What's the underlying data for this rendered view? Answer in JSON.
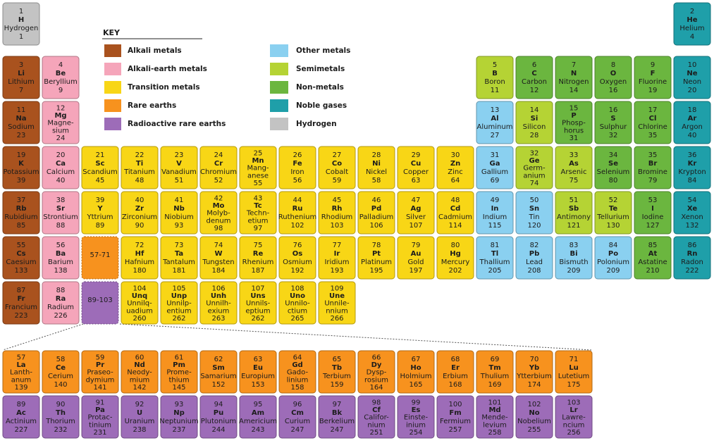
{
  "key": {
    "title": "KEY",
    "items": [
      {
        "label": "Alkali metals",
        "color": "#a9521e"
      },
      {
        "label": "Alkali-earth metals",
        "color": "#f5a5ba"
      },
      {
        "label": "Transition metals",
        "color": "#f8d616"
      },
      {
        "label": "Rare earths",
        "color": "#f7921e"
      },
      {
        "label": "Radioactive rare earths",
        "color": "#9d6cb8"
      },
      {
        "label": "Other metals",
        "color": "#8ad0f0"
      },
      {
        "label": "Semimetals",
        "color": "#b5d334"
      },
      {
        "label": "Non-metals",
        "color": "#6bb63f"
      },
      {
        "label": "Noble gases",
        "color": "#1f9fa9"
      },
      {
        "label": "Hydrogen",
        "color": "#c3c3c3"
      }
    ]
  },
  "periods": [
    [
      {
        "number": 1,
        "symbol": "H",
        "name": [
          "Hydrogen"
        ],
        "mass": 1,
        "color": "#c3c3c3"
      },
      {
        "number": 2,
        "symbol": "He",
        "name": [
          "Helium"
        ],
        "mass": 4,
        "color": "#1f9fa9"
      }
    ],
    [
      {
        "number": 3,
        "symbol": "Li",
        "name": [
          "Lithium"
        ],
        "mass": 7,
        "color": "#a9521e"
      },
      {
        "number": 4,
        "symbol": "Be",
        "name": [
          "Beryllium"
        ],
        "mass": 9,
        "color": "#f5a5ba"
      },
      {
        "number": 5,
        "symbol": "B",
        "name": [
          "Boron"
        ],
        "mass": 11,
        "color": "#b5d334"
      },
      {
        "number": 6,
        "symbol": "C",
        "name": [
          "Carbon"
        ],
        "mass": 12,
        "color": "#6bb63f"
      },
      {
        "number": 7,
        "symbol": "N",
        "name": [
          "Nitrogen"
        ],
        "mass": 14,
        "color": "#6bb63f"
      },
      {
        "number": 8,
        "symbol": "O",
        "name": [
          "Oxygen"
        ],
        "mass": 16,
        "color": "#6bb63f"
      },
      {
        "number": 9,
        "symbol": "F",
        "name": [
          "Fluorine"
        ],
        "mass": 19,
        "color": "#6bb63f"
      },
      {
        "number": 10,
        "symbol": "Ne",
        "name": [
          "Neon"
        ],
        "mass": 20,
        "color": "#1f9fa9"
      }
    ],
    [
      {
        "number": 11,
        "symbol": "Na",
        "name": [
          "Sodium"
        ],
        "mass": 23,
        "color": "#a9521e"
      },
      {
        "number": 12,
        "symbol": "Mg",
        "name": [
          "Magne-",
          "sium"
        ],
        "mass": 24,
        "color": "#f5a5ba"
      },
      {
        "number": 13,
        "symbol": "Al",
        "name": [
          "Aluminum"
        ],
        "mass": 27,
        "color": "#8ad0f0"
      },
      {
        "number": 14,
        "symbol": "Si",
        "name": [
          "Silicon"
        ],
        "mass": 28,
        "color": "#b5d334"
      },
      {
        "number": 15,
        "symbol": "P",
        "name": [
          "Phosp-",
          "horus"
        ],
        "mass": 31,
        "color": "#6bb63f"
      },
      {
        "number": 16,
        "symbol": "S",
        "name": [
          "Sulphur"
        ],
        "mass": 32,
        "color": "#6bb63f"
      },
      {
        "number": 17,
        "symbol": "Cl",
        "name": [
          "Chlorine"
        ],
        "mass": 35,
        "color": "#6bb63f"
      },
      {
        "number": 18,
        "symbol": "Ar",
        "name": [
          "Argon"
        ],
        "mass": 40,
        "color": "#1f9fa9"
      }
    ],
    [
      {
        "number": 19,
        "symbol": "K",
        "name": [
          "Potassium"
        ],
        "mass": 39,
        "color": "#a9521e"
      },
      {
        "number": 20,
        "symbol": "Ca",
        "name": [
          "Calcium"
        ],
        "mass": 40,
        "color": "#f5a5ba"
      },
      {
        "number": 21,
        "symbol": "Sc",
        "name": [
          "Scandium"
        ],
        "mass": 45,
        "color": "#f8d616"
      },
      {
        "number": 22,
        "symbol": "Ti",
        "name": [
          "Titanium"
        ],
        "mass": 48,
        "color": "#f8d616"
      },
      {
        "number": 23,
        "symbol": "V",
        "name": [
          "Vanadium"
        ],
        "mass": 51,
        "color": "#f8d616"
      },
      {
        "number": 24,
        "symbol": "Cr",
        "name": [
          "Chromium"
        ],
        "mass": 52,
        "color": "#f8d616"
      },
      {
        "number": 25,
        "symbol": "Mn",
        "name": [
          "Mang-",
          "anese"
        ],
        "mass": 55,
        "color": "#f8d616"
      },
      {
        "number": 26,
        "symbol": "Fe",
        "name": [
          "Iron"
        ],
        "mass": 56,
        "color": "#f8d616"
      },
      {
        "number": 27,
        "symbol": "Co",
        "name": [
          "Cobalt"
        ],
        "mass": 59,
        "color": "#f8d616"
      },
      {
        "number": 28,
        "symbol": "Ni",
        "name": [
          "Nickel"
        ],
        "mass": 58,
        "color": "#f8d616"
      },
      {
        "number": 29,
        "symbol": "Cu",
        "name": [
          "Copper"
        ],
        "mass": 63,
        "color": "#f8d616"
      },
      {
        "number": 30,
        "symbol": "Zn",
        "name": [
          "Zinc"
        ],
        "mass": 64,
        "color": "#f8d616"
      },
      {
        "number": 31,
        "symbol": "Ga",
        "name": [
          "Gallium"
        ],
        "mass": 69,
        "color": "#8ad0f0"
      },
      {
        "number": 32,
        "symbol": "Ge",
        "name": [
          "Germ-",
          "anium"
        ],
        "mass": 74,
        "color": "#b5d334"
      },
      {
        "number": 33,
        "symbol": "As",
        "name": [
          "Arsenic"
        ],
        "mass": 75,
        "color": "#b5d334"
      },
      {
        "number": 34,
        "symbol": "Se",
        "name": [
          "Selenium"
        ],
        "mass": 80,
        "color": "#6bb63f"
      },
      {
        "number": 35,
        "symbol": "Br",
        "name": [
          "Bromine"
        ],
        "mass": 79,
        "color": "#6bb63f"
      },
      {
        "number": 36,
        "symbol": "Kr",
        "name": [
          "Krypton"
        ],
        "mass": 84,
        "color": "#1f9fa9"
      }
    ],
    [
      {
        "number": 37,
        "symbol": "Rb",
        "name": [
          "Rubidium"
        ],
        "mass": 85,
        "color": "#a9521e"
      },
      {
        "number": 38,
        "symbol": "Sr",
        "name": [
          "Strontium"
        ],
        "mass": 88,
        "color": "#f5a5ba"
      },
      {
        "number": 39,
        "symbol": "Y",
        "name": [
          "Yttrium"
        ],
        "mass": 89,
        "color": "#f8d616"
      },
      {
        "number": 40,
        "symbol": "Zr",
        "name": [
          "Zirconium"
        ],
        "mass": 90,
        "color": "#f8d616"
      },
      {
        "number": 41,
        "symbol": "Nb",
        "name": [
          "Niobium"
        ],
        "mass": 93,
        "color": "#f8d616"
      },
      {
        "number": 42,
        "symbol": "Mo",
        "name": [
          "Molyb-",
          "denum"
        ],
        "mass": 98,
        "color": "#f8d616"
      },
      {
        "number": 43,
        "symbol": "Tc",
        "name": [
          "Techn-",
          "etium"
        ],
        "mass": 97,
        "color": "#f8d616"
      },
      {
        "number": 44,
        "symbol": "Ru",
        "name": [
          "Ruthenium"
        ],
        "mass": 102,
        "color": "#f8d616"
      },
      {
        "number": 45,
        "symbol": "Rh",
        "name": [
          "Rhodium"
        ],
        "mass": 103,
        "color": "#f8d616"
      },
      {
        "number": 46,
        "symbol": "Pd",
        "name": [
          "Palladium"
        ],
        "mass": 106,
        "color": "#f8d616"
      },
      {
        "number": 47,
        "symbol": "Ag",
        "name": [
          "Silver"
        ],
        "mass": 107,
        "color": "#f8d616"
      },
      {
        "number": 48,
        "symbol": "Cd",
        "name": [
          "Cadmium"
        ],
        "mass": 114,
        "color": "#f8d616"
      },
      {
        "number": 49,
        "symbol": "In",
        "name": [
          "Indium"
        ],
        "mass": 115,
        "color": "#8ad0f0"
      },
      {
        "number": 50,
        "symbol": "Sn",
        "name": [
          "Tin"
        ],
        "mass": 120,
        "color": "#8ad0f0"
      },
      {
        "number": 51,
        "symbol": "Sb",
        "name": [
          "Antimony"
        ],
        "mass": 121,
        "color": "#b5d334"
      },
      {
        "number": 52,
        "symbol": "Te",
        "name": [
          "Tellurium"
        ],
        "mass": 130,
        "color": "#b5d334"
      },
      {
        "number": 53,
        "symbol": "I",
        "name": [
          "Iodine"
        ],
        "mass": 127,
        "color": "#6bb63f"
      },
      {
        "number": 54,
        "symbol": "Xe",
        "name": [
          "Xenon"
        ],
        "mass": 132,
        "color": "#1f9fa9"
      }
    ],
    [
      {
        "number": 55,
        "symbol": "Cs",
        "name": [
          "Caesium"
        ],
        "mass": 133,
        "color": "#a9521e"
      },
      {
        "number": 56,
        "symbol": "Ba",
        "name": [
          "Barium"
        ],
        "mass": 138,
        "color": "#f5a5ba"
      },
      {
        "label": "57-71",
        "color": "#f7921e"
      },
      {
        "number": 72,
        "symbol": "Hf",
        "name": [
          "Hafnium"
        ],
        "mass": 180,
        "color": "#f8d616"
      },
      {
        "number": 73,
        "symbol": "Ta",
        "name": [
          "Tantalum"
        ],
        "mass": 181,
        "color": "#f8d616"
      },
      {
        "number": 74,
        "symbol": "W",
        "name": [
          "Tungsten"
        ],
        "mass": 184,
        "color": "#f8d616"
      },
      {
        "number": 75,
        "symbol": "Re",
        "name": [
          "Rhenium"
        ],
        "mass": 187,
        "color": "#f8d616"
      },
      {
        "number": 76,
        "symbol": "Os",
        "name": [
          "Osmium"
        ],
        "mass": 192,
        "color": "#f8d616"
      },
      {
        "number": 77,
        "symbol": "Ir",
        "name": [
          "Iridium"
        ],
        "mass": 193,
        "color": "#f8d616"
      },
      {
        "number": 78,
        "symbol": "Pt",
        "name": [
          "Platinum"
        ],
        "mass": 195,
        "color": "#f8d616"
      },
      {
        "number": 79,
        "symbol": "Au",
        "name": [
          "Gold"
        ],
        "mass": 197,
        "color": "#f8d616"
      },
      {
        "number": 80,
        "symbol": "Hg",
        "name": [
          "Mercury"
        ],
        "mass": 202,
        "color": "#f8d616"
      },
      {
        "number": 81,
        "symbol": "Tl",
        "name": [
          "Thallium"
        ],
        "mass": 205,
        "color": "#8ad0f0"
      },
      {
        "number": 82,
        "symbol": "Pb",
        "name": [
          "Lead"
        ],
        "mass": 208,
        "color": "#8ad0f0"
      },
      {
        "number": 83,
        "symbol": "Bi",
        "name": [
          "Bismuth"
        ],
        "mass": 209,
        "color": "#8ad0f0"
      },
      {
        "number": 84,
        "symbol": "Po",
        "name": [
          "Polonium"
        ],
        "mass": 209,
        "color": "#8ad0f0"
      },
      {
        "number": 85,
        "symbol": "At",
        "name": [
          "Astatine"
        ],
        "mass": 210,
        "color": "#6bb63f"
      },
      {
        "number": 86,
        "symbol": "Rn",
        "name": [
          "Radon"
        ],
        "mass": 222,
        "color": "#1f9fa9"
      }
    ],
    [
      {
        "number": 87,
        "symbol": "Fr",
        "name": [
          "Francium"
        ],
        "mass": 223,
        "color": "#a9521e"
      },
      {
        "number": 88,
        "symbol": "Ra",
        "name": [
          "Radium"
        ],
        "mass": 226,
        "color": "#f5a5ba"
      },
      {
        "label": "89-103",
        "color": "#9d6cb8"
      },
      {
        "number": 104,
        "symbol": "Unq",
        "name": [
          "Unnilq-",
          "uadium"
        ],
        "mass": 260,
        "color": "#f8d616"
      },
      {
        "number": 105,
        "symbol": "Unp",
        "name": [
          "Unnilp-",
          "entium"
        ],
        "mass": 262,
        "color": "#f8d616"
      },
      {
        "number": 106,
        "symbol": "Unh",
        "name": [
          "Unnilh-",
          "exium"
        ],
        "mass": 263,
        "color": "#f8d616"
      },
      {
        "number": 107,
        "symbol": "Uns",
        "name": [
          "Unnils-",
          "eptium"
        ],
        "mass": 262,
        "color": "#f8d616"
      },
      {
        "number": 108,
        "symbol": "Uno",
        "name": [
          "Unnilo-",
          "ctium"
        ],
        "mass": 265,
        "color": "#f8d616"
      },
      {
        "number": 109,
        "symbol": "Une",
        "name": [
          "Unnile-",
          "nnium"
        ],
        "mass": 266,
        "color": "#f8d616"
      }
    ]
  ],
  "lanthanides": [
    {
      "number": 57,
      "symbol": "La",
      "name": [
        "Lanth-",
        "anum"
      ],
      "mass": 139,
      "color": "#f7921e"
    },
    {
      "number": 58,
      "symbol": "Ce",
      "name": [
        "Cerium"
      ],
      "mass": 140,
      "color": "#f7921e"
    },
    {
      "number": 59,
      "symbol": "Pr",
      "name": [
        "Praseo-",
        "dymium"
      ],
      "mass": 141,
      "color": "#f7921e"
    },
    {
      "number": 60,
      "symbol": "Nd",
      "name": [
        "Neody-",
        "mium"
      ],
      "mass": 142,
      "color": "#f7921e"
    },
    {
      "number": 61,
      "symbol": "Pm",
      "name": [
        "Prome-",
        "thium"
      ],
      "mass": 145,
      "color": "#f7921e"
    },
    {
      "number": 62,
      "symbol": "Sm",
      "name": [
        "Samarium"
      ],
      "mass": 152,
      "color": "#f7921e"
    },
    {
      "number": 63,
      "symbol": "Eu",
      "name": [
        "Europium"
      ],
      "mass": 153,
      "color": "#f7921e"
    },
    {
      "number": 64,
      "symbol": "Gd",
      "name": [
        "Gado-",
        "linium"
      ],
      "mass": 158,
      "color": "#f7921e"
    },
    {
      "number": 65,
      "symbol": "Tb",
      "name": [
        "Terbium"
      ],
      "mass": 159,
      "color": "#f7921e"
    },
    {
      "number": 66,
      "symbol": "Dy",
      "name": [
        "Dysp-",
        "rosium"
      ],
      "mass": 164,
      "color": "#f7921e"
    },
    {
      "number": 67,
      "symbol": "Ho",
      "name": [
        "Holmium"
      ],
      "mass": 165,
      "color": "#f7921e"
    },
    {
      "number": 68,
      "symbol": "Er",
      "name": [
        "Erbium"
      ],
      "mass": 168,
      "color": "#f7921e"
    },
    {
      "number": 69,
      "symbol": "Tm",
      "name": [
        "Thulium"
      ],
      "mass": 169,
      "color": "#f7921e"
    },
    {
      "number": 70,
      "symbol": "Yb",
      "name": [
        "Ytterbium"
      ],
      "mass": 174,
      "color": "#f7921e"
    },
    {
      "number": 71,
      "symbol": "Lu",
      "name": [
        "Lutetium"
      ],
      "mass": 175,
      "color": "#f7921e"
    }
  ],
  "actinides": [
    {
      "number": 89,
      "symbol": "Ac",
      "name": [
        "Actinium"
      ],
      "mass": 227,
      "color": "#9d6cb8"
    },
    {
      "number": 90,
      "symbol": "Th",
      "name": [
        "Thorium"
      ],
      "mass": 232,
      "color": "#9d6cb8"
    },
    {
      "number": 91,
      "symbol": "Pa",
      "name": [
        "Protac-",
        "tinium"
      ],
      "mass": 231,
      "color": "#9d6cb8"
    },
    {
      "number": 92,
      "symbol": "U",
      "name": [
        "Uranium"
      ],
      "mass": 238,
      "color": "#9d6cb8"
    },
    {
      "number": 93,
      "symbol": "Np",
      "name": [
        "Neptunium"
      ],
      "mass": 237,
      "color": "#9d6cb8"
    },
    {
      "number": 94,
      "symbol": "Pu",
      "name": [
        "Plutonium"
      ],
      "mass": 244,
      "color": "#9d6cb8"
    },
    {
      "number": 95,
      "symbol": "Am",
      "name": [
        "Americium"
      ],
      "mass": 243,
      "color": "#9d6cb8"
    },
    {
      "number": 96,
      "symbol": "Cm",
      "name": [
        "Curium"
      ],
      "mass": 247,
      "color": "#9d6cb8"
    },
    {
      "number": 97,
      "symbol": "Bk",
      "name": [
        "Berkelium"
      ],
      "mass": 247,
      "color": "#9d6cb8"
    },
    {
      "number": 98,
      "symbol": "Cf",
      "name": [
        "Califor-",
        "nium"
      ],
      "mass": 251,
      "color": "#9d6cb8"
    },
    {
      "number": 99,
      "symbol": "Es",
      "name": [
        "Einste-",
        "inium"
      ],
      "mass": 254,
      "color": "#9d6cb8"
    },
    {
      "number": 100,
      "symbol": "Fm",
      "name": [
        "Fermium"
      ],
      "mass": 257,
      "color": "#9d6cb8"
    },
    {
      "number": 101,
      "symbol": "Md",
      "name": [
        "Mende-",
        "levium"
      ],
      "mass": 258,
      "color": "#9d6cb8"
    },
    {
      "number": 102,
      "symbol": "No",
      "name": [
        "Nobelium"
      ],
      "mass": 255,
      "color": "#9d6cb8"
    },
    {
      "number": 103,
      "symbol": "Lr",
      "name": [
        "Lawre-",
        "ncium"
      ],
      "mass": 256,
      "color": "#9d6cb8"
    }
  ]
}
